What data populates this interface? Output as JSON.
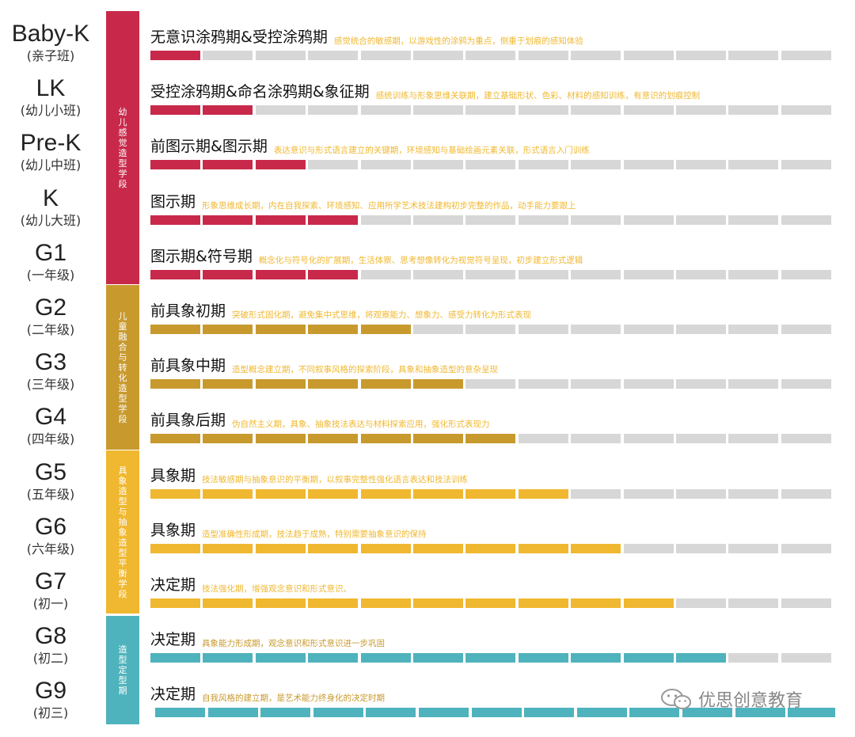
{
  "colors": {
    "crimson": "#c8294a",
    "ochre": "#c89a2e",
    "amber": "#f0b830",
    "teal": "#4fb3bd",
    "inactive": "#d7d7d7"
  },
  "grades": [
    {
      "code": "Baby-K",
      "cn": "(亲子班)"
    },
    {
      "code": "LK",
      "cn": "(幼儿小班)"
    },
    {
      "code": "Pre-K",
      "cn": "(幼儿中班)"
    },
    {
      "code": "K",
      "cn": "(幼儿大班)"
    },
    {
      "code": "G1",
      "cn": "(一年级)"
    },
    {
      "code": "G2",
      "cn": "(二年级)"
    },
    {
      "code": "G3",
      "cn": "(三年级)"
    },
    {
      "code": "G4",
      "cn": "(四年级)"
    },
    {
      "code": "G5",
      "cn": "(五年级)"
    },
    {
      "code": "G6",
      "cn": "(六年级)"
    },
    {
      "code": "G7",
      "cn": "(初一)"
    },
    {
      "code": "G8",
      "cn": "(初二)"
    },
    {
      "code": "G9",
      "cn": "(初三)"
    }
  ],
  "phases": [
    {
      "label": "幼儿感觉造型学段",
      "color": "crimson"
    },
    {
      "label": "儿童融合与转化造型学段",
      "color": "ochre"
    },
    {
      "label": "具象造型与抽象造型平衡学段",
      "color": "amber"
    },
    {
      "label": "造型定型期",
      "color": "teal"
    }
  ],
  "stages": [
    {
      "title": "无意识涂鸦期&受控涂鸦期",
      "desc": "感觉统合的敏感期，以游戏性的涂鸦为重点，侧重于划痕的感知体验",
      "filled": 1,
      "color": "crimson"
    },
    {
      "title": "受控涂鸦期&命名涂鸦期&象征期",
      "desc": "感统训练与形象思维关联期，建立基础形状、色彩、材料的感知训练，有意识的划痕控制",
      "filled": 2,
      "color": "crimson"
    },
    {
      "title": "前图示期&图示期",
      "desc": "表达意识与形式语言建立的关键期，环境感知与基础绘画元素关联，形式语言入门训练",
      "filled": 3,
      "color": "crimson"
    },
    {
      "title": "图示期",
      "desc": "形象思维成长期，内在自我探索、环境感知、应用所学艺术技法建构初步完整的作品，动手能力要跟上",
      "filled": 4,
      "color": "crimson"
    },
    {
      "title": "图示期&符号期",
      "desc": "概念化与符号化的扩展期，生活体察、思考想像转化为视觉符号呈现，初步建立形式逻辑",
      "filled": 4,
      "color": "crimson"
    },
    {
      "title": "前具象初期",
      "desc": "突破形式固化期，避免集中式思维，将观察能力、想象力、感受力转化为形式表现",
      "filled": 5,
      "color": "ochre"
    },
    {
      "title": "前具象中期",
      "desc": "造型概念建立期，不同叙事风格的探索阶段，具象和抽象造型的意杂呈现",
      "filled": 6,
      "color": "ochre"
    },
    {
      "title": "前具象后期",
      "desc": "伪自然主义期，具象、抽象技法表达与材料探索应用，强化形式表现力",
      "filled": 7,
      "color": "ochre"
    },
    {
      "title": "具象期",
      "desc": "技法敏感期与抽象意识的平衡期，以叙事完整性强化语言表达和技法训练",
      "filled": 8,
      "color": "amber"
    },
    {
      "title": "具象期",
      "desc": "造型准确性形成期，技法趋于成熟，特别需要抽象意识的保持",
      "filled": 9,
      "color": "amber"
    },
    {
      "title": "决定期",
      "desc": "技法强化期，增强观念意识和形式意识。",
      "filled": 10,
      "color": "amber"
    },
    {
      "title": "决定期",
      "desc": "具象能力形成期，观念意识和形式意识进一步巩固",
      "filled": 11,
      "color": "teal"
    },
    {
      "title": "决定期",
      "desc": "自我风格的建立期，是艺术能力终身化的决定时期",
      "filled": 13,
      "color": "teal"
    }
  ],
  "watermark": {
    "text": "优思创意教育",
    "icon": "wechat-icon"
  }
}
